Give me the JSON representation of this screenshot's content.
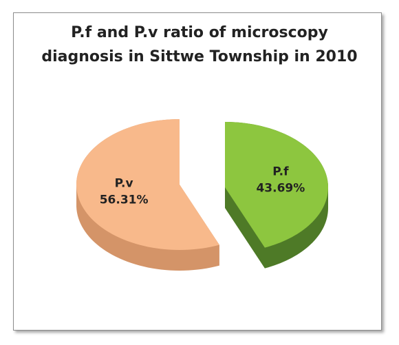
{
  "chart_data": {
    "type": "pie3d",
    "title": "P.f and P.v ratio of microscopy diagnosis in Sittwe Township in 2010",
    "categories": [
      "P.f",
      "P.v"
    ],
    "values": [
      43.69,
      56.31
    ],
    "value_labels": [
      "43.69%",
      "56.31%"
    ],
    "colors": [
      "#8dc63f",
      "#f8b98b"
    ],
    "side_colors": [
      "#4e7a27",
      "#d49468"
    ]
  }
}
